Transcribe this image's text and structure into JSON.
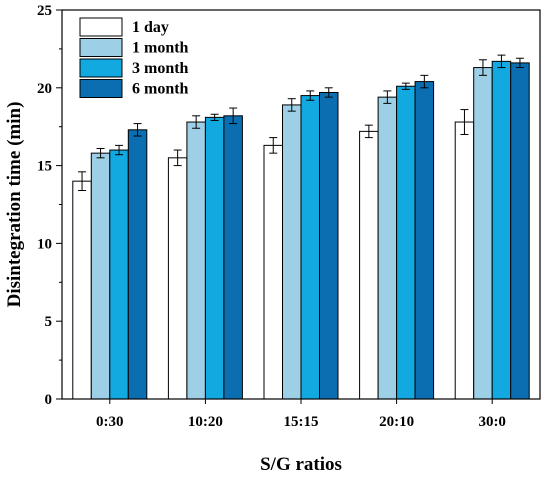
{
  "chart_data": {
    "type": "bar",
    "categories": [
      "0:30",
      "10:20",
      "15:15",
      "20:10",
      "30:0"
    ],
    "series": [
      {
        "name": "1 day",
        "color": "#ffffff",
        "values": [
          14.0,
          15.5,
          16.3,
          17.2,
          17.8
        ],
        "errors": [
          0.6,
          0.5,
          0.5,
          0.4,
          0.8
        ]
      },
      {
        "name": "1 month",
        "color": "#9dcfe6",
        "values": [
          15.8,
          17.8,
          18.9,
          19.4,
          21.3
        ],
        "errors": [
          0.3,
          0.4,
          0.4,
          0.4,
          0.5
        ]
      },
      {
        "name": "3 month",
        "color": "#12a8e0",
        "values": [
          16.0,
          18.1,
          19.5,
          20.1,
          21.7
        ],
        "errors": [
          0.3,
          0.2,
          0.3,
          0.2,
          0.4
        ]
      },
      {
        "name": "6 month",
        "color": "#0a6eb0",
        "values": [
          17.3,
          18.2,
          19.7,
          20.4,
          21.6
        ],
        "errors": [
          0.4,
          0.5,
          0.3,
          0.4,
          0.3
        ]
      }
    ],
    "xlabel": "S/G ratios",
    "ylabel": "Disintegration time (min)",
    "ylim": [
      0,
      25
    ],
    "yticks": [
      0,
      5,
      10,
      15,
      20,
      25
    ],
    "grid": false,
    "legend_position": "top-left"
  }
}
